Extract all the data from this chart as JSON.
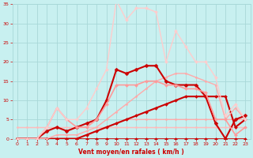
{
  "title": "Vent moyen/en rafales ( km/h )",
  "bg_color": "#c8f0f0",
  "grid_color": "#a8d8d8",
  "text_color": "#cc0000",
  "xlim": [
    -0.5,
    23.5
  ],
  "ylim": [
    0,
    35
  ],
  "yticks": [
    0,
    5,
    10,
    15,
    20,
    25,
    30,
    35
  ],
  "xticks": [
    0,
    1,
    2,
    3,
    4,
    5,
    6,
    7,
    8,
    9,
    10,
    11,
    12,
    13,
    14,
    15,
    16,
    17,
    18,
    19,
    20,
    21,
    22,
    23
  ],
  "lines": [
    {
      "x": [
        0,
        1,
        2,
        3,
        4,
        5,
        6,
        7,
        8,
        9,
        10,
        11,
        12,
        13,
        14,
        15,
        16,
        17,
        18,
        19,
        20,
        21,
        22,
        23
      ],
      "y": [
        0,
        0,
        0,
        0,
        0,
        0,
        0,
        0,
        0,
        0,
        0,
        0,
        0,
        0,
        0,
        0,
        0,
        0,
        0,
        0,
        0,
        0,
        0,
        0
      ],
      "color": "#cc0000",
      "lw": 1.2,
      "marker": "D",
      "ms": 2.0
    },
    {
      "x": [
        0,
        1,
        2,
        3,
        4,
        5,
        6,
        7,
        8,
        9,
        10,
        11,
        12,
        13,
        14,
        15,
        16,
        17,
        18,
        19,
        20,
        21,
        22,
        23
      ],
      "y": [
        3,
        3,
        3,
        3,
        3,
        3,
        3,
        3,
        3,
        3,
        3,
        3,
        3,
        3,
        3,
        3,
        3,
        3,
        3,
        3,
        3,
        3,
        3,
        3
      ],
      "color": "#ffbbbb",
      "lw": 1.0,
      "marker": "D",
      "ms": 1.5
    },
    {
      "x": [
        0,
        1,
        2,
        3,
        4,
        5,
        6,
        7,
        8,
        9,
        10,
        11,
        12,
        13,
        14,
        15,
        16,
        17,
        18,
        19,
        20,
        21,
        22,
        23
      ],
      "y": [
        0,
        0,
        0,
        0,
        0,
        0,
        0,
        1,
        2,
        3,
        4,
        5,
        5,
        5,
        5,
        5,
        5,
        5,
        5,
        5,
        5,
        5,
        5,
        5
      ],
      "color": "#ffaaaa",
      "lw": 1.0,
      "marker": "D",
      "ms": 1.5
    },
    {
      "x": [
        0,
        1,
        2,
        3,
        4,
        5,
        6,
        7,
        8,
        9,
        10,
        11,
        12,
        13,
        14,
        15,
        16,
        17,
        18,
        19,
        20,
        21,
        22,
        23
      ],
      "y": [
        0,
        0,
        0,
        0,
        0,
        0,
        0,
        1,
        2,
        3,
        4,
        5,
        6,
        7,
        8,
        9,
        10,
        11,
        11,
        11,
        11,
        11,
        3,
        5
      ],
      "color": "#cc0000",
      "lw": 1.5,
      "marker": "D",
      "ms": 2.0
    },
    {
      "x": [
        0,
        1,
        2,
        3,
        4,
        5,
        6,
        7,
        8,
        9,
        10,
        11,
        12,
        13,
        14,
        15,
        16,
        17,
        18,
        19,
        20,
        21,
        22,
        23
      ],
      "y": [
        0,
        0,
        0,
        0,
        1,
        1,
        1,
        2,
        3,
        5,
        7,
        9,
        11,
        13,
        15,
        16,
        17,
        17,
        16,
        15,
        14,
        5,
        8,
        5
      ],
      "color": "#ffaaaa",
      "lw": 1.0,
      "marker": "D",
      "ms": 1.5
    },
    {
      "x": [
        0,
        1,
        2,
        3,
        4,
        5,
        6,
        7,
        8,
        9,
        10,
        11,
        12,
        13,
        14,
        15,
        16,
        17,
        18,
        19,
        20,
        21,
        22,
        23
      ],
      "y": [
        0,
        0,
        0,
        2,
        3,
        2,
        3,
        4,
        5,
        10,
        18,
        17,
        18,
        19,
        19,
        15,
        14,
        14,
        14,
        11,
        4,
        0,
        5,
        6
      ],
      "color": "#cc0000",
      "lw": 1.5,
      "marker": "D",
      "ms": 2.5
    },
    {
      "x": [
        0,
        1,
        2,
        3,
        4,
        5,
        6,
        7,
        8,
        9,
        10,
        11,
        12,
        13,
        14,
        15,
        16,
        17,
        18,
        19,
        20,
        21,
        22,
        23
      ],
      "y": [
        0,
        0,
        0,
        3,
        8,
        5,
        3,
        3,
        5,
        9,
        14,
        14,
        14,
        15,
        15,
        14,
        14,
        13,
        13,
        12,
        5,
        5,
        1,
        3
      ],
      "color": "#ff9999",
      "lw": 1.2,
      "marker": "D",
      "ms": 2.0
    },
    {
      "x": [
        0,
        1,
        2,
        3,
        4,
        5,
        6,
        7,
        8,
        9,
        10,
        11,
        12,
        13,
        14,
        15,
        16,
        17,
        18,
        19,
        20,
        21,
        22,
        23
      ],
      "y": [
        0,
        0,
        0,
        3,
        8,
        5,
        5,
        8,
        13,
        18,
        36,
        31,
        34,
        34,
        33,
        20,
        28,
        24,
        20,
        20,
        16,
        6,
        9,
        5
      ],
      "color": "#ffcccc",
      "lw": 1.0,
      "marker": "D",
      "ms": 2.0
    }
  ]
}
